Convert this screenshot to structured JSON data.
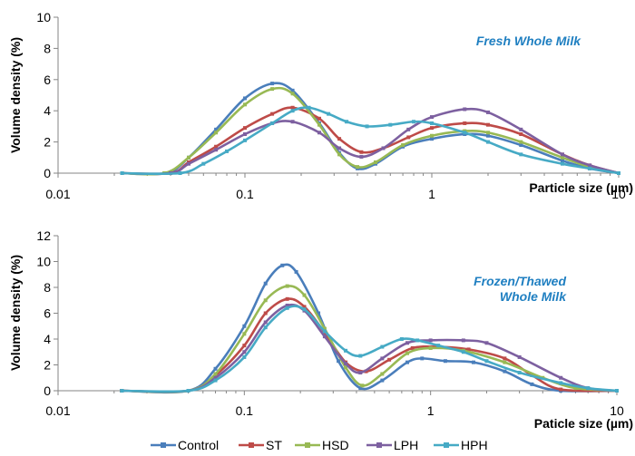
{
  "chart_data": [
    {
      "type": "line",
      "title": "",
      "annotation": "Fresh Whole Milk",
      "xlabel": "Particle size (µm)",
      "ylabel": "Volume density (%)",
      "x_scale": "log",
      "xlim": [
        0.01,
        10
      ],
      "ylim": [
        0,
        10
      ],
      "x_tick_labels": [
        "0.01",
        "0.1",
        "1",
        "10"
      ],
      "y_tick_labels": [
        "0",
        "2",
        "4",
        "6",
        "8",
        "10"
      ],
      "grid": false,
      "series": [
        {
          "name": "Control",
          "color": "#4a7ebb",
          "points": [
            [
              0.022,
              0
            ],
            [
              0.038,
              0
            ],
            [
              0.05,
              1
            ],
            [
              0.07,
              2.8
            ],
            [
              0.1,
              4.8
            ],
            [
              0.14,
              5.75
            ],
            [
              0.18,
              5.3
            ],
            [
              0.25,
              3.2
            ],
            [
              0.32,
              1.3
            ],
            [
              0.4,
              0.3
            ],
            [
              0.5,
              0.6
            ],
            [
              0.7,
              1.7
            ],
            [
              1,
              2.2
            ],
            [
              1.5,
              2.5
            ],
            [
              2,
              2.4
            ],
            [
              3,
              1.8
            ],
            [
              5,
              0.8
            ],
            [
              7,
              0.3
            ],
            [
              10,
              0
            ]
          ]
        },
        {
          "name": "ST",
          "color": "#be4b48",
          "points": [
            [
              0.022,
              0
            ],
            [
              0.04,
              0
            ],
            [
              0.05,
              0.7
            ],
            [
              0.07,
              1.7
            ],
            [
              0.1,
              2.9
            ],
            [
              0.14,
              3.8
            ],
            [
              0.18,
              4.2
            ],
            [
              0.25,
              3.5
            ],
            [
              0.32,
              2.2
            ],
            [
              0.42,
              1.35
            ],
            [
              0.55,
              1.6
            ],
            [
              0.75,
              2.3
            ],
            [
              1,
              2.9
            ],
            [
              1.5,
              3.2
            ],
            [
              2,
              3.1
            ],
            [
              3,
              2.5
            ],
            [
              5,
              1.2
            ],
            [
              7,
              0.5
            ],
            [
              10,
              0
            ]
          ]
        },
        {
          "name": "HSD",
          "color": "#98b954",
          "points": [
            [
              0.022,
              0
            ],
            [
              0.037,
              0
            ],
            [
              0.05,
              1
            ],
            [
              0.07,
              2.6
            ],
            [
              0.1,
              4.4
            ],
            [
              0.14,
              5.4
            ],
            [
              0.18,
              5.1
            ],
            [
              0.25,
              3.1
            ],
            [
              0.32,
              1.2
            ],
            [
              0.4,
              0.4
            ],
            [
              0.5,
              0.7
            ],
            [
              0.7,
              1.8
            ],
            [
              1,
              2.4
            ],
            [
              1.5,
              2.7
            ],
            [
              2,
              2.6
            ],
            [
              3,
              2
            ],
            [
              5,
              1
            ],
            [
              7,
              0.4
            ],
            [
              10,
              0
            ]
          ]
        },
        {
          "name": "LPH",
          "color": "#7d60a0",
          "points": [
            [
              0.022,
              0
            ],
            [
              0.04,
              0
            ],
            [
              0.05,
              0.6
            ],
            [
              0.07,
              1.5
            ],
            [
              0.1,
              2.5
            ],
            [
              0.14,
              3.2
            ],
            [
              0.18,
              3.3
            ],
            [
              0.25,
              2.6
            ],
            [
              0.32,
              1.6
            ],
            [
              0.42,
              1.05
            ],
            [
              0.55,
              1.6
            ],
            [
              0.75,
              2.8
            ],
            [
              1,
              3.6
            ],
            [
              1.5,
              4.1
            ],
            [
              2,
              3.9
            ],
            [
              3,
              2.8
            ],
            [
              5,
              1.2
            ],
            [
              7,
              0.5
            ],
            [
              10,
              0
            ]
          ]
        },
        {
          "name": "HPH",
          "color": "#46aac5",
          "points": [
            [
              0.022,
              0
            ],
            [
              0.045,
              0
            ],
            [
              0.06,
              0.6
            ],
            [
              0.08,
              1.4
            ],
            [
              0.1,
              2.1
            ],
            [
              0.14,
              3.2
            ],
            [
              0.18,
              4
            ],
            [
              0.22,
              4.2
            ],
            [
              0.28,
              3.8
            ],
            [
              0.35,
              3.3
            ],
            [
              0.45,
              3
            ],
            [
              0.6,
              3.1
            ],
            [
              0.8,
              3.3
            ],
            [
              1,
              3.2
            ],
            [
              1.5,
              2.6
            ],
            [
              2,
              2
            ],
            [
              3,
              1.2
            ],
            [
              5,
              0.6
            ],
            [
              7,
              0.3
            ],
            [
              10,
              0
            ]
          ]
        }
      ]
    },
    {
      "type": "line",
      "title": "",
      "annotation": "Frozen/Thawed Whole Milk",
      "xlabel": "Paticle size (µm)",
      "ylabel": "Volume density (%)",
      "x_scale": "log",
      "xlim": [
        0.01,
        10
      ],
      "ylim": [
        0,
        12
      ],
      "x_tick_labels": [
        "0.01",
        "0.1",
        "1",
        "10"
      ],
      "y_tick_labels": [
        "0",
        "2",
        "4",
        "6",
        "8",
        "10",
        "12"
      ],
      "grid": false,
      "series": [
        {
          "name": "Control",
          "color": "#4a7ebb",
          "points": [
            [
              0.022,
              0
            ],
            [
              0.05,
              0
            ],
            [
              0.07,
              1.7
            ],
            [
              0.1,
              5
            ],
            [
              0.13,
              8.3
            ],
            [
              0.16,
              9.7
            ],
            [
              0.19,
              9.2
            ],
            [
              0.25,
              6
            ],
            [
              0.32,
              2.3
            ],
            [
              0.42,
              0.2
            ],
            [
              0.55,
              0.8
            ],
            [
              0.75,
              2.2
            ],
            [
              0.9,
              2.5
            ],
            [
              1.2,
              2.3
            ],
            [
              1.7,
              2.2
            ],
            [
              2.5,
              1.5
            ],
            [
              3.5,
              0.5
            ],
            [
              5,
              0
            ],
            [
              10,
              0
            ]
          ]
        },
        {
          "name": "ST",
          "color": "#be4b48",
          "points": [
            [
              0.022,
              0
            ],
            [
              0.05,
              0
            ],
            [
              0.07,
              1.2
            ],
            [
              0.1,
              3.5
            ],
            [
              0.13,
              6
            ],
            [
              0.17,
              7.1
            ],
            [
              0.21,
              6.5
            ],
            [
              0.27,
              4.5
            ],
            [
              0.35,
              2.2
            ],
            [
              0.45,
              1.5
            ],
            [
              0.6,
              2.4
            ],
            [
              0.8,
              3.3
            ],
            [
              1.1,
              3.4
            ],
            [
              1.6,
              3.2
            ],
            [
              2.5,
              2.5
            ],
            [
              3.5,
              1.2
            ],
            [
              5,
              0.1
            ],
            [
              10,
              0
            ]
          ]
        },
        {
          "name": "HSD",
          "color": "#98b954",
          "points": [
            [
              0.022,
              0
            ],
            [
              0.05,
              0
            ],
            [
              0.07,
              1.3
            ],
            [
              0.1,
              4.4
            ],
            [
              0.13,
              7
            ],
            [
              0.17,
              8.1
            ],
            [
              0.21,
              7.4
            ],
            [
              0.27,
              4.8
            ],
            [
              0.35,
              1.8
            ],
            [
              0.43,
              0.4
            ],
            [
              0.55,
              1.3
            ],
            [
              0.75,
              2.9
            ],
            [
              1,
              3.3
            ],
            [
              1.5,
              3.1
            ],
            [
              2.5,
              2.2
            ],
            [
              4,
              1
            ],
            [
              6,
              0.2
            ],
            [
              10,
              0
            ]
          ]
        },
        {
          "name": "LPH",
          "color": "#7d60a0",
          "points": [
            [
              0.022,
              0
            ],
            [
              0.05,
              0
            ],
            [
              0.07,
              1
            ],
            [
              0.1,
              3
            ],
            [
              0.13,
              5.3
            ],
            [
              0.17,
              6.6
            ],
            [
              0.21,
              6.2
            ],
            [
              0.27,
              4.2
            ],
            [
              0.35,
              2.1
            ],
            [
              0.42,
              1.4
            ],
            [
              0.55,
              2.5
            ],
            [
              0.75,
              3.7
            ],
            [
              1,
              3.9
            ],
            [
              1.5,
              3.9
            ],
            [
              2,
              3.7
            ],
            [
              3,
              2.6
            ],
            [
              5,
              1
            ],
            [
              7,
              0.2
            ],
            [
              10,
              0
            ]
          ]
        },
        {
          "name": "HPH",
          "color": "#46aac5",
          "points": [
            [
              0.022,
              0
            ],
            [
              0.05,
              0
            ],
            [
              0.07,
              0.8
            ],
            [
              0.1,
              2.6
            ],
            [
              0.13,
              4.9
            ],
            [
              0.17,
              6.4
            ],
            [
              0.21,
              6.3
            ],
            [
              0.27,
              4.6
            ],
            [
              0.35,
              3.1
            ],
            [
              0.42,
              2.7
            ],
            [
              0.55,
              3.4
            ],
            [
              0.7,
              4
            ],
            [
              0.85,
              3.9
            ],
            [
              1.1,
              3.5
            ],
            [
              1.5,
              3
            ],
            [
              2,
              2.3
            ],
            [
              3,
              1.4
            ],
            [
              5,
              0.6
            ],
            [
              7,
              0.2
            ],
            [
              10,
              0
            ]
          ]
        }
      ]
    }
  ],
  "legend": {
    "placement": "bottom",
    "entries": [
      {
        "name": "Control",
        "color": "#4a7ebb"
      },
      {
        "name": "ST",
        "color": "#be4b48"
      },
      {
        "name": "HSD",
        "color": "#98b954"
      },
      {
        "name": "LPH",
        "color": "#7d60a0"
      },
      {
        "name": "HPH",
        "color": "#46aac5"
      }
    ]
  }
}
